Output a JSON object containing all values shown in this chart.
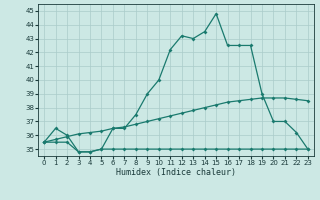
{
  "title": "",
  "xlabel": "Humidex (Indice chaleur)",
  "x": [
    0,
    1,
    2,
    3,
    4,
    5,
    6,
    7,
    8,
    9,
    10,
    11,
    12,
    13,
    14,
    15,
    16,
    17,
    18,
    19,
    20,
    21,
    22,
    23
  ],
  "line1": [
    35.5,
    36.5,
    36.0,
    34.8,
    34.8,
    35.0,
    36.5,
    36.5,
    37.5,
    39.0,
    40.0,
    42.2,
    43.2,
    43.0,
    43.5,
    44.8,
    42.5,
    42.5,
    42.5,
    39.0,
    37.0,
    37.0,
    36.2,
    35.0
  ],
  "line_avg": [
    35.5,
    35.7,
    35.9,
    36.1,
    36.2,
    36.3,
    36.5,
    36.6,
    36.8,
    37.0,
    37.2,
    37.4,
    37.6,
    37.8,
    38.0,
    38.2,
    38.4,
    38.5,
    38.6,
    38.7,
    38.7,
    38.7,
    38.6,
    38.5
  ],
  "line_min": [
    35.5,
    35.5,
    35.5,
    34.8,
    34.8,
    35.0,
    35.0,
    35.0,
    35.0,
    35.0,
    35.0,
    35.0,
    35.0,
    35.0,
    35.0,
    35.0,
    35.0,
    35.0,
    35.0,
    35.0,
    35.0,
    35.0,
    35.0,
    35.0
  ],
  "line_color": "#1a7a6e",
  "bg_color": "#cce8e4",
  "grid_color": "#aaccca",
  "ylim": [
    34.5,
    45.5
  ],
  "xlim": [
    -0.5,
    23.5
  ],
  "yticks": [
    35,
    36,
    37,
    38,
    39,
    40,
    41,
    42,
    43,
    44,
    45
  ],
  "xticks": [
    0,
    1,
    2,
    3,
    4,
    5,
    6,
    7,
    8,
    9,
    10,
    11,
    12,
    13,
    14,
    15,
    16,
    17,
    18,
    19,
    20,
    21,
    22,
    23
  ],
  "font_color": "#1a3a3a",
  "label_fontsize": 6,
  "tick_fontsize": 5
}
